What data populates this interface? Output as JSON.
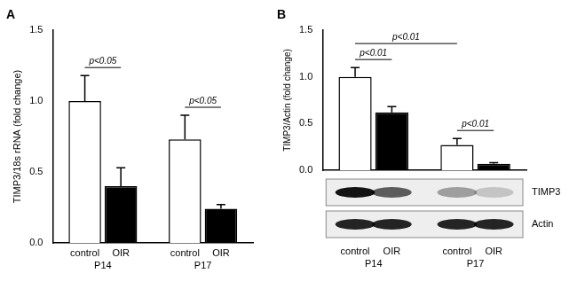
{
  "chart_data": [
    {
      "type": "bar",
      "panel": "A",
      "y_label": "TIMP3/18s rRNA (fold change)",
      "categories": [
        "P14",
        "P17"
      ],
      "series": [
        {
          "name": "control",
          "color": "#ffffff",
          "values": [
            1.0,
            0.73
          ],
          "errors": [
            0.18,
            0.17
          ]
        },
        {
          "name": "OIR",
          "color": "#000000",
          "values": [
            0.4,
            0.24
          ],
          "errors": [
            0.13,
            0.03
          ]
        }
      ],
      "ylim": [
        0,
        1.5
      ],
      "yticks": [
        {
          "value": 0,
          "label": "0.0"
        },
        0.5,
        {
          "value": 1,
          "label": "1.0"
        },
        1.5
      ],
      "grid": false,
      "annotations": [
        {
          "text": "p<0.05",
          "from": {
            "category": "P14",
            "series": "control"
          },
          "to": {
            "category": "P14",
            "series": "OIR"
          }
        },
        {
          "text": "p<0.05",
          "from": {
            "category": "P17",
            "series": "control"
          },
          "to": {
            "category": "P17",
            "series": "OIR"
          }
        }
      ]
    },
    {
      "type": "bar",
      "panel": "B",
      "y_label": "TIMP3/Actin (fold change)",
      "categories": [
        "P14",
        "P17"
      ],
      "series": [
        {
          "name": "control",
          "color": "#ffffff",
          "values": [
            1.0,
            0.27
          ],
          "errors": [
            0.1,
            0.07
          ]
        },
        {
          "name": "OIR",
          "color": "#000000",
          "values": [
            0.62,
            0.07
          ],
          "errors": [
            0.06,
            0.01
          ]
        }
      ],
      "ylim": [
        0,
        1.5
      ],
      "yticks": [
        {
          "value": 0,
          "label": "0.0"
        },
        0.5,
        {
          "value": 1,
          "label": "1.0"
        },
        1.5
      ],
      "grid": false,
      "annotations": [
        {
          "text": "p<0.01",
          "from": {
            "category": "P14",
            "series": "control"
          },
          "to": {
            "category": "P14",
            "series": "OIR"
          }
        },
        {
          "text": "p<0.01",
          "from": {
            "category": "P14",
            "series": "control"
          },
          "to": {
            "category": "P17",
            "series": "control"
          }
        },
        {
          "text": "p<0.01",
          "from": {
            "category": "P17",
            "series": "control"
          },
          "to": {
            "category": "P17",
            "series": "OIR"
          }
        }
      ],
      "blot": {
        "labels": [
          "TIMP3",
          "Actin"
        ]
      }
    }
  ]
}
